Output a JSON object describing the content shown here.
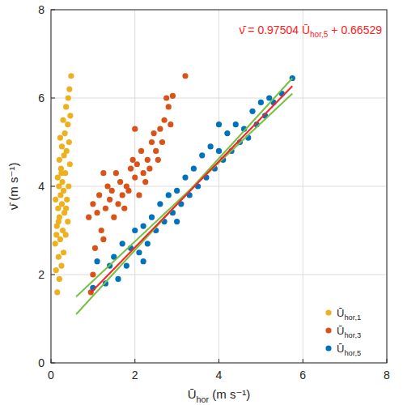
{
  "chart_data": {
    "type": "scatter",
    "x_label": "Ūhor (m s⁻¹)",
    "y_label": "ν̄ (m s⁻¹)",
    "annotation": "ν̄ = 0.97504  Ūhor,5 + 0.66529",
    "annotation_color": "#ff2020",
    "xlim": [
      0,
      8
    ],
    "ylim": [
      0,
      8
    ],
    "xticks": [
      0,
      2,
      4,
      6,
      8
    ],
    "yticks": [
      0,
      2,
      4,
      6,
      8
    ],
    "grid": true,
    "legend": "lower right",
    "series": [
      {
        "name": "Ūhor,1",
        "color": "#EDB120",
        "type": "scatter",
        "marker": "circle",
        "x": [
          0.15,
          0.2,
          0.12,
          0.25,
          0.18,
          0.3,
          0.1,
          0.22,
          0.35,
          0.28,
          0.14,
          0.4,
          0.2,
          0.32,
          0.17,
          0.26,
          0.38,
          0.11,
          0.23,
          0.3,
          0.19,
          0.42,
          0.27,
          0.16,
          0.34,
          0.24,
          0.45,
          0.2,
          0.31,
          0.37,
          0.26,
          0.43,
          0.22,
          0.33,
          0.4,
          0.29,
          0.46,
          0.36,
          0.41,
          0.44,
          0.48,
          0.13,
          0.36,
          0.25,
          0.18
        ],
        "values": [
          1.6,
          1.9,
          2.1,
          2.2,
          2.4,
          2.5,
          2.7,
          2.8,
          2.9,
          3.0,
          3.1,
          3.2,
          3.3,
          3.4,
          3.5,
          3.6,
          3.7,
          3.7,
          3.8,
          3.9,
          4.0,
          4.0,
          4.1,
          4.2,
          4.3,
          4.4,
          4.5,
          4.6,
          4.7,
          4.8,
          4.9,
          5.0,
          5.1,
          5.2,
          5.4,
          5.5,
          5.6,
          5.8,
          6.0,
          6.2,
          6.5,
          2.9,
          3.5,
          4.3,
          3.2
        ]
      },
      {
        "name": "Ūhor,3",
        "color": "#D95319",
        "type": "scatter",
        "marker": "circle",
        "x": [
          0.95,
          1.0,
          1.05,
          0.9,
          1.0,
          1.1,
          1.2,
          1.15,
          1.3,
          1.25,
          1.4,
          1.35,
          1.5,
          1.45,
          1.6,
          1.55,
          1.7,
          1.65,
          1.8,
          1.75,
          1.9,
          1.85,
          2.0,
          1.95,
          2.1,
          2.05,
          2.2,
          2.15,
          2.3,
          2.25,
          2.4,
          2.35,
          2.5,
          2.45,
          2.6,
          2.55,
          2.7,
          2.65,
          2.8,
          2.75,
          2.9,
          2.85,
          3.2,
          2.0,
          1.25
        ],
        "values": [
          1.6,
          2.0,
          2.6,
          3.3,
          3.6,
          3.4,
          3.0,
          3.8,
          3.5,
          2.8,
          3.7,
          4.0,
          3.3,
          3.9,
          3.6,
          4.3,
          3.8,
          4.1,
          4.0,
          3.5,
          4.4,
          3.9,
          4.2,
          4.6,
          3.8,
          4.5,
          4.3,
          4.8,
          4.6,
          4.1,
          5.0,
          4.4,
          4.8,
          5.2,
          5.3,
          4.6,
          5.5,
          5.0,
          5.8,
          6.0,
          6.05,
          5.4,
          6.5,
          5.3,
          4.3
        ]
      },
      {
        "name": "Ūhor,5",
        "color": "#0072BD",
        "type": "scatter",
        "marker": "circle",
        "x": [
          1.0,
          1.1,
          1.3,
          1.4,
          1.5,
          1.6,
          1.7,
          1.8,
          1.9,
          2.0,
          2.1,
          2.2,
          2.3,
          2.4,
          2.5,
          2.6,
          2.7,
          2.8,
          2.9,
          3.0,
          3.1,
          3.2,
          3.3,
          3.4,
          3.5,
          3.6,
          3.7,
          3.8,
          3.9,
          4.0,
          4.1,
          4.2,
          4.3,
          4.4,
          4.5,
          4.6,
          4.7,
          4.8,
          4.9,
          5.0,
          5.1,
          5.2,
          5.3,
          5.5,
          5.75,
          3.0,
          2.2,
          4.0
        ],
        "values": [
          1.7,
          2.3,
          1.8,
          2.2,
          2.4,
          1.9,
          2.7,
          2.2,
          2.6,
          3.0,
          2.5,
          3.1,
          2.7,
          3.3,
          3.0,
          3.6,
          3.2,
          3.8,
          3.4,
          3.9,
          3.6,
          4.2,
          3.8,
          4.4,
          4.0,
          4.7,
          4.2,
          4.9,
          4.4,
          4.8,
          4.6,
          5.2,
          4.8,
          5.4,
          5.0,
          5.3,
          5.1,
          5.7,
          5.4,
          5.9,
          5.6,
          6.0,
          5.9,
          6.1,
          6.45,
          3.2,
          2.3,
          5.4
        ]
      },
      {
        "type": "line",
        "color": "#77C043",
        "line_style": "solid",
        "x": [
          0.6,
          5.75
        ],
        "values": [
          1.5,
          6.1
        ]
      },
      {
        "type": "line",
        "color": "#77C043",
        "line_style": "solid",
        "x": [
          0.6,
          5.75
        ],
        "values": [
          1.1,
          6.45
        ]
      },
      {
        "type": "line",
        "color": "#ff2020",
        "line_style": "solid",
        "x": [
          0.95,
          5.75
        ],
        "values": [
          1.5916,
          6.2718
        ]
      }
    ]
  }
}
